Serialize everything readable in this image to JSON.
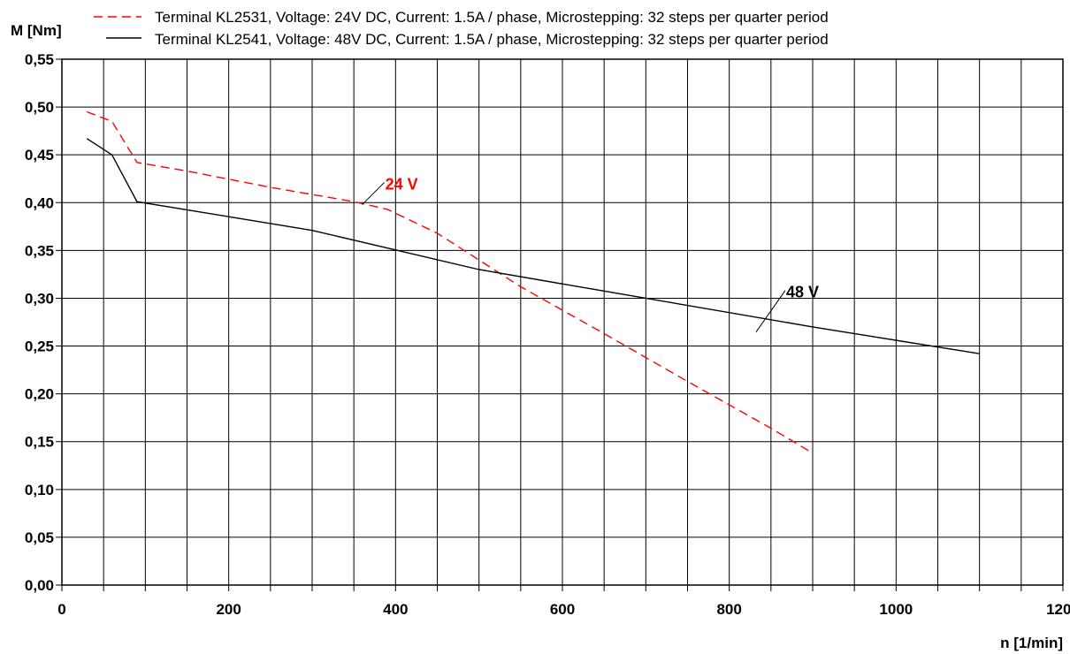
{
  "chart_data": {
    "type": "line",
    "xlabel": "n [1/min]",
    "ylabel": "M [Nm]",
    "xlim": [
      0,
      1200
    ],
    "ylim": [
      0,
      0.55
    ],
    "x_ticks": [
      0,
      200,
      400,
      600,
      800,
      1000,
      1200
    ],
    "x_tick_labels": [
      "0",
      "200",
      "400",
      "600",
      "800",
      "1000",
      "1200"
    ],
    "x_grid_step": 50,
    "y_ticks": [
      0,
      0.05,
      0.1,
      0.15,
      0.2,
      0.25,
      0.3,
      0.35,
      0.4,
      0.45,
      0.5,
      0.55
    ],
    "y_tick_labels": [
      "0,00",
      "0,05",
      "0,10",
      "0,15",
      "0,20",
      "0,25",
      "0,30",
      "0,35",
      "0,40",
      "0,45",
      "0,50",
      "0,55"
    ],
    "grid": true,
    "legend_position": "top",
    "series": [
      {
        "name": "Terminal KL2531, Voltage: 24V DC, Current: 1.5A / phase, Microstepping: 32 steps per quarter period",
        "color": "#ff0000",
        "style": "dashed",
        "x": [
          30,
          60,
          90,
          150,
          250,
          350,
          390,
          450,
          550,
          650,
          750,
          850,
          900
        ],
        "y": [
          0.495,
          0.485,
          0.442,
          0.433,
          0.416,
          0.401,
          0.393,
          0.368,
          0.312,
          0.263,
          0.213,
          0.164,
          0.138
        ]
      },
      {
        "name": "Terminal KL2541, Voltage: 48V DC, Current: 1.5A / phase, Microstepping: 32 steps per quarter period",
        "color": "#000000",
        "style": "solid",
        "x": [
          30,
          60,
          90,
          300,
          500,
          700,
          900,
          1100
        ],
        "y": [
          0.467,
          0.45,
          0.401,
          0.371,
          0.33,
          0.3,
          0.27,
          0.242
        ]
      }
    ],
    "annotations": [
      {
        "text": "24 V",
        "color": "#ff0000",
        "x": 360,
        "y": 0.398
      },
      {
        "text": "48 V",
        "color": "#000000",
        "x": 830,
        "y": 0.285
      }
    ]
  }
}
